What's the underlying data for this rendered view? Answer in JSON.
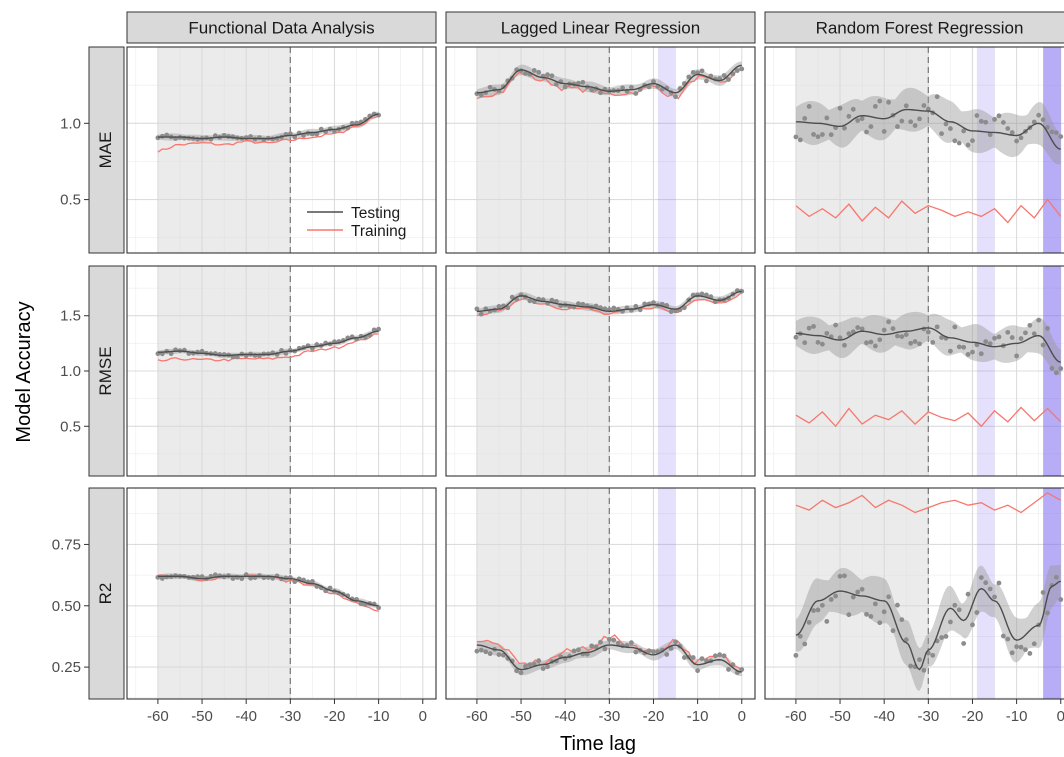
{
  "chart_data": {
    "type": "line",
    "xlabel": "Time lag",
    "ylabel": "Model Accuracy",
    "x_ticks": [
      -60,
      -50,
      -40,
      -30,
      -20,
      -10,
      0
    ],
    "xlim": [
      -67,
      3
    ],
    "columns": [
      "Functional Data Analysis",
      "Lagged Linear Regression",
      "Random Forest Regression"
    ],
    "rows": [
      {
        "label": "MAE",
        "ylim": [
          0.15,
          1.5
        ],
        "ticks": [
          0.5,
          1.0
        ],
        "tick_labels": [
          "0.5",
          "1.0"
        ]
      },
      {
        "label": "RMSE",
        "ylim": [
          0.05,
          1.95
        ],
        "ticks": [
          0.5,
          1.0,
          1.5
        ],
        "tick_labels": [
          "0.5",
          "1.0",
          "1.5"
        ]
      },
      {
        "label": "R2",
        "ylim": [
          0.12,
          0.98
        ],
        "ticks": [
          0.25,
          0.5,
          0.75
        ],
        "tick_labels": [
          "0.25",
          "0.50",
          "0.75"
        ]
      }
    ],
    "legend": {
      "position": "inside bottom-right of first panel",
      "entries": [
        "Testing",
        "Training"
      ]
    },
    "colors": {
      "testing": "#4d4d4d",
      "training": "#f8766d",
      "points": "#8c8c8c",
      "ribbon": "#999999",
      "shade": "#ebebeb",
      "band": "#7b68ee"
    },
    "shaded_region": [
      -60,
      -30
    ],
    "vline_x": -30,
    "highlight_bands": [
      {
        "column": 1,
        "x": [
          -19,
          -15
        ],
        "opacity": "light"
      },
      {
        "column": 2,
        "x": [
          -19,
          -15
        ],
        "opacity": "light"
      },
      {
        "column": 2,
        "x": [
          -4,
          0
        ],
        "opacity": "dark"
      }
    ],
    "panels": [
      {
        "row": 0,
        "col": 0,
        "x_range": [
          -60,
          -10
        ],
        "testing": [
          [
            -60,
            0.91
          ],
          [
            -55,
            0.91
          ],
          [
            -50,
            0.9
          ],
          [
            -45,
            0.91
          ],
          [
            -40,
            0.9
          ],
          [
            -35,
            0.9
          ],
          [
            -30,
            0.92
          ],
          [
            -25,
            0.94
          ],
          [
            -20,
            0.96
          ],
          [
            -15,
            0.99
          ],
          [
            -10,
            1.06
          ]
        ],
        "training": [
          [
            -60,
            0.82
          ],
          [
            -55,
            0.86
          ],
          [
            -50,
            0.87
          ],
          [
            -45,
            0.86
          ],
          [
            -40,
            0.88
          ],
          [
            -35,
            0.87
          ],
          [
            -30,
            0.89
          ],
          [
            -25,
            0.91
          ],
          [
            -20,
            0.93
          ],
          [
            -15,
            0.98
          ],
          [
            -10,
            1.05
          ]
        ],
        "ribbon": 0.02,
        "noise": 0.015
      },
      {
        "row": 0,
        "col": 1,
        "x_range": [
          -60,
          0
        ],
        "testing": [
          [
            -60,
            1.2
          ],
          [
            -55,
            1.22
          ],
          [
            -50,
            1.35
          ],
          [
            -45,
            1.3
          ],
          [
            -40,
            1.26
          ],
          [
            -35,
            1.24
          ],
          [
            -30,
            1.21
          ],
          [
            -25,
            1.22
          ],
          [
            -20,
            1.26
          ],
          [
            -15,
            1.2
          ],
          [
            -10,
            1.32
          ],
          [
            -5,
            1.28
          ],
          [
            0,
            1.38
          ]
        ],
        "training": [
          [
            -60,
            1.18
          ],
          [
            -55,
            1.2
          ],
          [
            -50,
            1.33
          ],
          [
            -45,
            1.28
          ],
          [
            -40,
            1.23
          ],
          [
            -35,
            1.22
          ],
          [
            -30,
            1.19
          ],
          [
            -25,
            1.2
          ],
          [
            -20,
            1.24
          ],
          [
            -15,
            1.17
          ],
          [
            -10,
            1.3
          ],
          [
            -5,
            1.26
          ],
          [
            0,
            1.35
          ]
        ],
        "ribbon": 0.03,
        "noise": 0.03
      },
      {
        "row": 0,
        "col": 2,
        "x_range": [
          -60,
          0
        ],
        "testing": [
          [
            -60,
            1.01
          ],
          [
            -55,
            1.0
          ],
          [
            -50,
            0.98
          ],
          [
            -45,
            1.05
          ],
          [
            -40,
            1.03
          ],
          [
            -35,
            1.09
          ],
          [
            -30,
            1.08
          ],
          [
            -25,
            1.01
          ],
          [
            -20,
            0.95
          ],
          [
            -15,
            0.94
          ],
          [
            -10,
            0.92
          ],
          [
            -5,
            1.0
          ],
          [
            0,
            0.83
          ]
        ],
        "training": [
          [
            -60,
            0.46
          ],
          [
            -57,
            0.39
          ],
          [
            -54,
            0.44
          ],
          [
            -51,
            0.38
          ],
          [
            -48,
            0.47
          ],
          [
            -45,
            0.36
          ],
          [
            -42,
            0.45
          ],
          [
            -39,
            0.38
          ],
          [
            -36,
            0.49
          ],
          [
            -33,
            0.41
          ],
          [
            -30,
            0.46
          ],
          [
            -27,
            0.43
          ],
          [
            -24,
            0.39
          ],
          [
            -21,
            0.42
          ],
          [
            -18,
            0.39
          ],
          [
            -15,
            0.44
          ],
          [
            -12,
            0.35
          ],
          [
            -9,
            0.46
          ],
          [
            -6,
            0.38
          ],
          [
            -3,
            0.5
          ],
          [
            0,
            0.39
          ]
        ],
        "ribbon": 0.12,
        "noise": 0.12
      },
      {
        "row": 1,
        "col": 0,
        "x_range": [
          -60,
          -10
        ],
        "testing": [
          [
            -60,
            1.17
          ],
          [
            -55,
            1.18
          ],
          [
            -50,
            1.16
          ],
          [
            -45,
            1.14
          ],
          [
            -40,
            1.15
          ],
          [
            -35,
            1.15
          ],
          [
            -30,
            1.18
          ],
          [
            -25,
            1.22
          ],
          [
            -20,
            1.25
          ],
          [
            -15,
            1.3
          ],
          [
            -10,
            1.36
          ]
        ],
        "training": [
          [
            -60,
            1.09
          ],
          [
            -55,
            1.11
          ],
          [
            -50,
            1.1
          ],
          [
            -45,
            1.1
          ],
          [
            -40,
            1.11
          ],
          [
            -35,
            1.11
          ],
          [
            -30,
            1.13
          ],
          [
            -25,
            1.18
          ],
          [
            -20,
            1.21
          ],
          [
            -15,
            1.27
          ],
          [
            -10,
            1.33
          ]
        ],
        "ribbon": 0.02,
        "noise": 0.02
      },
      {
        "row": 1,
        "col": 1,
        "x_range": [
          -60,
          0
        ],
        "testing": [
          [
            -60,
            1.54
          ],
          [
            -55,
            1.56
          ],
          [
            -50,
            1.68
          ],
          [
            -45,
            1.63
          ],
          [
            -40,
            1.6
          ],
          [
            -35,
            1.58
          ],
          [
            -30,
            1.54
          ],
          [
            -25,
            1.56
          ],
          [
            -20,
            1.6
          ],
          [
            -15,
            1.56
          ],
          [
            -10,
            1.68
          ],
          [
            -5,
            1.64
          ],
          [
            0,
            1.72
          ]
        ],
        "training": [
          [
            -60,
            1.52
          ],
          [
            -55,
            1.53
          ],
          [
            -50,
            1.66
          ],
          [
            -45,
            1.61
          ],
          [
            -40,
            1.57
          ],
          [
            -35,
            1.56
          ],
          [
            -30,
            1.51
          ],
          [
            -25,
            1.55
          ],
          [
            -20,
            1.58
          ],
          [
            -15,
            1.53
          ],
          [
            -10,
            1.66
          ],
          [
            -5,
            1.62
          ],
          [
            0,
            1.7
          ]
        ],
        "ribbon": 0.03,
        "noise": 0.03
      },
      {
        "row": 1,
        "col": 2,
        "x_range": [
          -60,
          0
        ],
        "testing": [
          [
            -60,
            1.34
          ],
          [
            -55,
            1.32
          ],
          [
            -50,
            1.28
          ],
          [
            -45,
            1.36
          ],
          [
            -40,
            1.33
          ],
          [
            -35,
            1.36
          ],
          [
            -30,
            1.39
          ],
          [
            -25,
            1.3
          ],
          [
            -20,
            1.26
          ],
          [
            -15,
            1.22
          ],
          [
            -10,
            1.25
          ],
          [
            -5,
            1.32
          ],
          [
            0,
            1.08
          ]
        ],
        "training": [
          [
            -60,
            0.6
          ],
          [
            -57,
            0.53
          ],
          [
            -54,
            0.63
          ],
          [
            -51,
            0.5
          ],
          [
            -48,
            0.66
          ],
          [
            -45,
            0.52
          ],
          [
            -42,
            0.6
          ],
          [
            -39,
            0.56
          ],
          [
            -36,
            0.64
          ],
          [
            -33,
            0.52
          ],
          [
            -30,
            0.63
          ],
          [
            -27,
            0.58
          ],
          [
            -24,
            0.55
          ],
          [
            -21,
            0.62
          ],
          [
            -18,
            0.5
          ],
          [
            -15,
            0.64
          ],
          [
            -12,
            0.54
          ],
          [
            -9,
            0.67
          ],
          [
            -6,
            0.55
          ],
          [
            -3,
            0.66
          ],
          [
            0,
            0.54
          ]
        ],
        "ribbon": 0.14,
        "noise": 0.15
      },
      {
        "row": 2,
        "col": 0,
        "x_range": [
          -60,
          -10
        ],
        "testing": [
          [
            -60,
            0.62
          ],
          [
            -55,
            0.62
          ],
          [
            -50,
            0.61
          ],
          [
            -45,
            0.62
          ],
          [
            -40,
            0.62
          ],
          [
            -35,
            0.62
          ],
          [
            -30,
            0.61
          ],
          [
            -25,
            0.59
          ],
          [
            -20,
            0.56
          ],
          [
            -15,
            0.52
          ],
          [
            -10,
            0.5
          ]
        ],
        "training": [
          [
            -60,
            0.62
          ],
          [
            -55,
            0.62
          ],
          [
            -50,
            0.6
          ],
          [
            -45,
            0.62
          ],
          [
            -40,
            0.62
          ],
          [
            -35,
            0.62
          ],
          [
            -30,
            0.6
          ],
          [
            -25,
            0.58
          ],
          [
            -20,
            0.55
          ],
          [
            -15,
            0.51
          ],
          [
            -10,
            0.48
          ]
        ],
        "ribbon": 0.01,
        "noise": 0.01
      },
      {
        "row": 2,
        "col": 1,
        "x_range": [
          -60,
          0
        ],
        "testing": [
          [
            -60,
            0.34
          ],
          [
            -55,
            0.32
          ],
          [
            -50,
            0.24
          ],
          [
            -45,
            0.26
          ],
          [
            -40,
            0.29
          ],
          [
            -35,
            0.31
          ],
          [
            -30,
            0.34
          ],
          [
            -25,
            0.33
          ],
          [
            -20,
            0.3
          ],
          [
            -15,
            0.34
          ],
          [
            -10,
            0.26
          ],
          [
            -5,
            0.28
          ],
          [
            0,
            0.23
          ]
        ],
        "training": [
          [
            -60,
            0.36
          ],
          [
            -55,
            0.34
          ],
          [
            -50,
            0.26
          ],
          [
            -45,
            0.27
          ],
          [
            -40,
            0.31
          ],
          [
            -35,
            0.33
          ],
          [
            -30,
            0.37
          ],
          [
            -25,
            0.34
          ],
          [
            -20,
            0.31
          ],
          [
            -15,
            0.36
          ],
          [
            -10,
            0.27
          ],
          [
            -5,
            0.29
          ],
          [
            0,
            0.24
          ]
        ],
        "ribbon": 0.02,
        "noise": 0.025
      },
      {
        "row": 2,
        "col": 2,
        "x_range": [
          -60,
          0
        ],
        "testing": [
          [
            -60,
            0.38
          ],
          [
            -55,
            0.52
          ],
          [
            -50,
            0.56
          ],
          [
            -45,
            0.54
          ],
          [
            -40,
            0.52
          ],
          [
            -35,
            0.35
          ],
          [
            -32,
            0.24
          ],
          [
            -30,
            0.32
          ],
          [
            -25,
            0.49
          ],
          [
            -22,
            0.44
          ],
          [
            -18,
            0.57
          ],
          [
            -15,
            0.52
          ],
          [
            -10,
            0.36
          ],
          [
            -5,
            0.42
          ],
          [
            -2,
            0.58
          ],
          [
            0,
            0.6
          ]
        ],
        "training": [
          [
            -60,
            0.91
          ],
          [
            -57,
            0.89
          ],
          [
            -54,
            0.93
          ],
          [
            -51,
            0.9
          ],
          [
            -48,
            0.92
          ],
          [
            -45,
            0.95
          ],
          [
            -42,
            0.9
          ],
          [
            -39,
            0.93
          ],
          [
            -36,
            0.91
          ],
          [
            -33,
            0.88
          ],
          [
            -30,
            0.9
          ],
          [
            -27,
            0.92
          ],
          [
            -24,
            0.93
          ],
          [
            -21,
            0.91
          ],
          [
            -18,
            0.92
          ],
          [
            -15,
            0.89
          ],
          [
            -12,
            0.91
          ],
          [
            -9,
            0.88
          ],
          [
            -6,
            0.92
          ],
          [
            -3,
            0.96
          ],
          [
            0,
            0.93
          ]
        ],
        "ribbon": 0.08,
        "noise": 0.1
      }
    ]
  }
}
